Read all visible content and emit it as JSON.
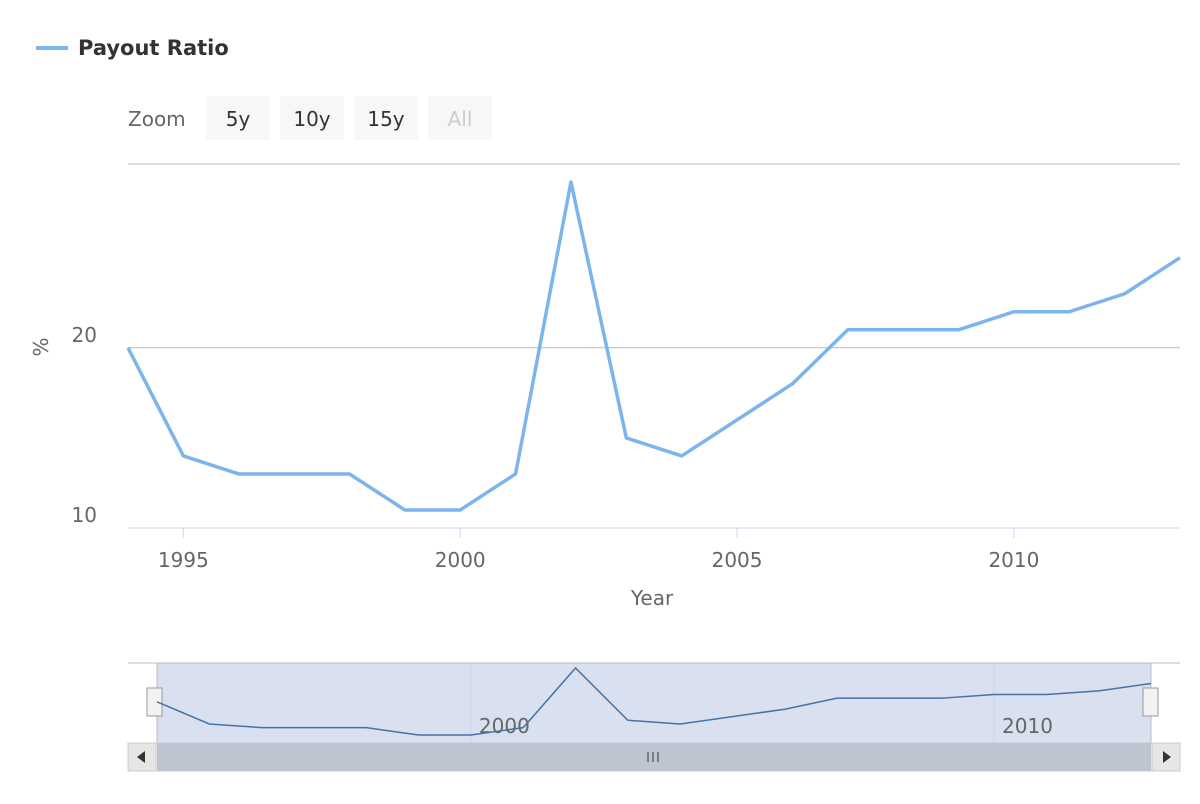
{
  "chart_data": {
    "type": "line",
    "legend": "Payout Ratio",
    "zoom_label": "Zoom",
    "zoom_buttons": [
      "5y",
      "10y",
      "15y",
      "All"
    ],
    "x_label": "Year",
    "y_label": "%",
    "x": [
      1994,
      1995,
      1996,
      1997,
      1998,
      1999,
      2000,
      2001,
      2002,
      2003,
      2004,
      2005,
      2006,
      2007,
      2008,
      2009,
      2010,
      2011,
      2012,
      2013
    ],
    "series": [
      {
        "name": "Payout Ratio",
        "color": "#7cb5ec",
        "values": [
          20,
          14,
          13,
          13,
          13,
          11,
          11,
          13,
          29.2,
          15,
          14,
          16,
          18,
          21,
          21,
          21,
          22,
          22,
          23,
          25
        ]
      }
    ],
    "xlim": [
      1994,
      2013
    ],
    "xticks": [
      1995,
      2000,
      2005,
      2010
    ],
    "ylim": [
      10,
      30.2
    ],
    "yticks": [
      10,
      20
    ],
    "grid": true
  }
}
